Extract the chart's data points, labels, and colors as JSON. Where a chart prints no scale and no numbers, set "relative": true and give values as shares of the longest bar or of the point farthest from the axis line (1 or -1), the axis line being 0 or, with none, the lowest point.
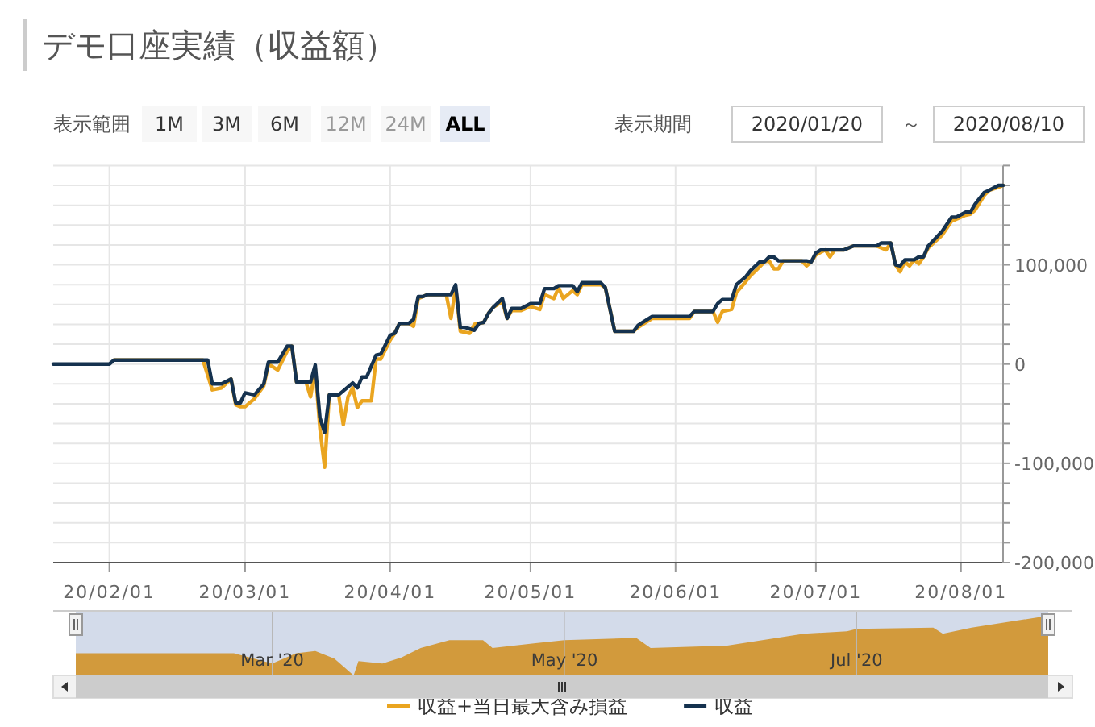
{
  "chart_data": [
    {
      "type": "line",
      "title": "デモ口座実績（収益額）",
      "annotations": [
        "表示範囲",
        "1M",
        "3M",
        "6M",
        "12M",
        "24M",
        "ALL",
        "表示期間",
        "2020/01/20",
        "～",
        "2020/08/10"
      ],
      "xlim": [
        "2020-01-20",
        "2020-08-10"
      ],
      "xticks": [
        {
          "value": "2020-02-01",
          "label": "20/02/01"
        },
        {
          "value": "2020-03-01",
          "label": "20/03/01"
        },
        {
          "value": "2020-04-01",
          "label": "20/04/01"
        },
        {
          "value": "2020-05-01",
          "label": "20/05/01"
        },
        {
          "value": "2020-06-01",
          "label": "20/06/01"
        },
        {
          "value": "2020-07-01",
          "label": "20/07/01"
        },
        {
          "value": "2020-08-01",
          "label": "20/08/01"
        }
      ],
      "ylim": [
        -200000,
        200000
      ],
      "yticks": [
        {
          "value": -200000,
          "label": "-200,000"
        },
        {
          "value": -180000,
          "label": null
        },
        {
          "value": -160000,
          "label": null
        },
        {
          "value": -140000,
          "label": null
        },
        {
          "value": -120000,
          "label": null
        },
        {
          "value": -100000,
          "label": "-100,000"
        },
        {
          "value": -80000,
          "label": null
        },
        {
          "value": -60000,
          "label": null
        },
        {
          "value": -40000,
          "label": null
        },
        {
          "value": -20000,
          "label": null
        },
        0,
        {
          "value": 20000,
          "label": null
        },
        {
          "value": 40000,
          "label": null
        },
        {
          "value": 60000,
          "label": null
        },
        {
          "value": 80000,
          "label": null
        },
        {
          "value": 100000,
          "label": "100,000"
        },
        {
          "value": 120000,
          "label": null
        },
        {
          "value": 140000,
          "label": null
        },
        {
          "value": 160000,
          "label": null
        },
        {
          "value": 180000,
          "label": null
        },
        {
          "value": 200000,
          "label": null
        }
      ],
      "grid": true,
      "legend": "bottom",
      "marker": "none",
      "line_style": "solid",
      "series": [
        {
          "name": "収益+当日最大含み損益",
          "color": "#eaa520",
          "x": [
            "2020-02-02",
            "2020-02-21",
            "2020-02-23",
            "2020-02-25",
            "2020-02-27",
            "2020-02-28",
            "2020-02-29",
            "2020-03-01",
            "2020-03-03",
            "2020-03-05",
            "2020-03-06",
            "2020-03-08",
            "2020-03-10",
            "2020-03-11",
            "2020-03-12",
            "2020-03-14",
            "2020-03-15",
            "2020-03-16",
            "2020-03-17",
            "2020-03-18",
            "2020-03-19",
            "2020-03-21",
            "2020-03-22",
            "2020-03-23",
            "2020-03-24",
            "2020-03-25",
            "2020-03-26",
            "2020-03-28",
            "2020-03-29",
            "2020-03-30",
            "2020-04-01",
            "2020-04-02",
            "2020-04-03",
            "2020-04-05",
            "2020-04-06",
            "2020-04-07",
            "2020-04-08",
            "2020-04-09",
            "2020-04-13",
            "2020-04-14",
            "2020-04-15",
            "2020-04-16",
            "2020-04-18",
            "2020-04-19",
            "2020-04-21",
            "2020-04-22",
            "2020-04-23",
            "2020-04-25",
            "2020-04-26",
            "2020-04-27",
            "2020-04-29",
            "2020-05-01",
            "2020-05-03",
            "2020-05-04",
            "2020-05-06",
            "2020-05-07",
            "2020-05-08",
            "2020-05-10",
            "2020-05-11",
            "2020-05-12",
            "2020-05-16",
            "2020-05-17",
            "2020-05-19",
            "2020-05-23",
            "2020-05-24",
            "2020-05-25",
            "2020-05-27",
            "2020-06-04",
            "2020-06-05",
            "2020-06-09",
            "2020-06-10",
            "2020-06-11",
            "2020-06-13",
            "2020-06-14",
            "2020-06-16",
            "2020-06-17",
            "2020-06-19",
            "2020-06-20",
            "2020-06-21",
            "2020-06-22",
            "2020-06-23",
            "2020-06-24",
            "2020-06-28",
            "2020-06-29",
            "2020-06-30",
            "2020-07-01",
            "2020-07-03",
            "2020-07-04",
            "2020-07-05",
            "2020-07-07",
            "2020-07-09",
            "2020-07-14",
            "2020-07-16",
            "2020-07-17",
            "2020-07-18",
            "2020-07-19",
            "2020-07-20",
            "2020-07-21",
            "2020-07-22",
            "2020-07-23",
            "2020-07-24",
            "2020-07-25",
            "2020-07-28",
            "2020-07-30",
            "2020-07-31",
            "2020-08-02",
            "2020-08-03",
            "2020-08-04",
            "2020-08-06",
            "2020-08-07",
            "2020-08-09",
            "2020-08-10"
          ],
          "values": [
            4000,
            4000,
            -26000,
            -24000,
            -15000,
            -41000,
            -43000,
            -43000,
            -35000,
            -22000,
            0,
            -6000,
            13000,
            18000,
            -18000,
            -18000,
            -33000,
            -5000,
            -65000,
            -104000,
            -31000,
            -31000,
            -61000,
            -33000,
            -24000,
            -44000,
            -37000,
            -37000,
            5000,
            5000,
            24000,
            31000,
            41000,
            41000,
            38000,
            66000,
            68000,
            70000,
            70000,
            46000,
            77000,
            33000,
            31000,
            40000,
            42000,
            51000,
            57000,
            63000,
            46000,
            54000,
            54000,
            58000,
            55000,
            70000,
            66000,
            77000,
            66000,
            74000,
            70000,
            80000,
            80000,
            77000,
            33000,
            33000,
            37000,
            40000,
            46000,
            46000,
            53000,
            53000,
            42000,
            53000,
            55000,
            72000,
            83000,
            89000,
            98000,
            103000,
            104000,
            96000,
            96000,
            104000,
            104000,
            99000,
            103000,
            110000,
            115000,
            108000,
            115000,
            115000,
            119000,
            119000,
            115000,
            122000,
            100000,
            93000,
            103000,
            99000,
            105000,
            101000,
            108000,
            117000,
            130000,
            144000,
            146000,
            150000,
            151000,
            155000,
            170000,
            175000,
            178000,
            180000
          ]
        },
        {
          "name": "収益",
          "color": "#15324f",
          "x": [
            "2020-01-20",
            "2020-02-01",
            "2020-02-02",
            "2020-02-22",
            "2020-02-23",
            "2020-02-25",
            "2020-02-27",
            "2020-02-28",
            "2020-02-29",
            "2020-03-01",
            "2020-03-03",
            "2020-03-05",
            "2020-03-06",
            "2020-03-08",
            "2020-03-10",
            "2020-03-11",
            "2020-03-12",
            "2020-03-15",
            "2020-03-16",
            "2020-03-17",
            "2020-03-18",
            "2020-03-19",
            "2020-03-21",
            "2020-03-24",
            "2020-03-25",
            "2020-03-26",
            "2020-03-27",
            "2020-03-29",
            "2020-03-30",
            "2020-04-01",
            "2020-04-02",
            "2020-04-03",
            "2020-04-05",
            "2020-04-06",
            "2020-04-07",
            "2020-04-08",
            "2020-04-09",
            "2020-04-14",
            "2020-04-15",
            "2020-04-16",
            "2020-04-17",
            "2020-04-19",
            "2020-04-20",
            "2020-04-21",
            "2020-04-22",
            "2020-04-23",
            "2020-04-25",
            "2020-04-26",
            "2020-04-27",
            "2020-04-29",
            "2020-05-01",
            "2020-05-03",
            "2020-05-04",
            "2020-05-06",
            "2020-05-07",
            "2020-05-10",
            "2020-05-11",
            "2020-05-12",
            "2020-05-16",
            "2020-05-17",
            "2020-05-19",
            "2020-05-23",
            "2020-05-24",
            "2020-05-25",
            "2020-05-27",
            "2020-06-04",
            "2020-06-05",
            "2020-06-09",
            "2020-06-10",
            "2020-06-11",
            "2020-06-13",
            "2020-06-14",
            "2020-06-16",
            "2020-06-17",
            "2020-06-19",
            "2020-06-20",
            "2020-06-21",
            "2020-06-22",
            "2020-06-23",
            "2020-06-29",
            "2020-06-30",
            "2020-07-01",
            "2020-07-02",
            "2020-07-07",
            "2020-07-09",
            "2020-07-14",
            "2020-07-15",
            "2020-07-17",
            "2020-07-18",
            "2020-07-19",
            "2020-07-20",
            "2020-07-22",
            "2020-07-23",
            "2020-07-24",
            "2020-07-25",
            "2020-07-28",
            "2020-07-30",
            "2020-07-31",
            "2020-08-02",
            "2020-08-03",
            "2020-08-04",
            "2020-08-06",
            "2020-08-07",
            "2020-08-09",
            "2020-08-10"
          ],
          "values": [
            0,
            0,
            4000,
            4000,
            -20000,
            -20000,
            -15000,
            -39000,
            -39000,
            -29000,
            -31000,
            -20000,
            2000,
            2000,
            18000,
            18000,
            -18000,
            -18000,
            -1000,
            -54000,
            -69000,
            -31000,
            -31000,
            -19000,
            -24000,
            -13000,
            -13000,
            9000,
            10000,
            29000,
            31000,
            41000,
            41000,
            45000,
            68000,
            68000,
            70000,
            70000,
            80000,
            37000,
            37000,
            34000,
            41000,
            42000,
            51000,
            57000,
            66000,
            46000,
            56000,
            56000,
            61000,
            61000,
            76000,
            76000,
            79000,
            79000,
            73000,
            82000,
            82000,
            77000,
            33000,
            33000,
            39000,
            42000,
            48000,
            48000,
            53000,
            53000,
            61000,
            65000,
            65000,
            80000,
            88000,
            94000,
            103000,
            103000,
            108000,
            108000,
            104000,
            104000,
            103000,
            112000,
            115000,
            115000,
            119000,
            119000,
            122000,
            122000,
            100000,
            99000,
            105000,
            105000,
            108000,
            108000,
            119000,
            134000,
            148000,
            148000,
            153000,
            153000,
            161000,
            173000,
            175000,
            180000,
            180000
          ]
        }
      ]
    },
    {
      "type": "area",
      "relative": true,
      "tick_labels": "x",
      "grid": "x",
      "xlim": [
        "2020-01-20",
        "2020-08-10"
      ],
      "xticks": [
        {
          "value": "2020-03-01",
          "label": "Mar '20"
        },
        {
          "value": "2020-05-01",
          "label": "May '20"
        },
        {
          "value": "2020-07-01",
          "label": "Jul '20"
        }
      ],
      "series": [
        {
          "color": "#d29a3c",
          "x": [
            "2020-01-20",
            "2020-02-22",
            "2020-03-01",
            "2020-03-06",
            "2020-03-10",
            "2020-03-14",
            "2020-03-18",
            "2020-03-19",
            "2020-03-24",
            "2020-03-28",
            "2020-04-01",
            "2020-04-07",
            "2020-04-14",
            "2020-04-16",
            "2020-04-25",
            "2020-05-01",
            "2020-05-16",
            "2020-05-19",
            "2020-06-04",
            "2020-06-20",
            "2020-06-29",
            "2020-07-01",
            "2020-07-17",
            "2020-07-19",
            "2020-07-25",
            "2020-08-10"
          ],
          "values": [
            0.37,
            0.37,
            0.2,
            0.37,
            0.41,
            0.28,
            0,
            0.24,
            0.2,
            0.3,
            0.46,
            0.59,
            0.59,
            0.46,
            0.54,
            0.59,
            0.63,
            0.46,
            0.5,
            0.7,
            0.74,
            0.78,
            0.8,
            0.7,
            0.8,
            1
          ]
        }
      ]
    }
  ]
}
